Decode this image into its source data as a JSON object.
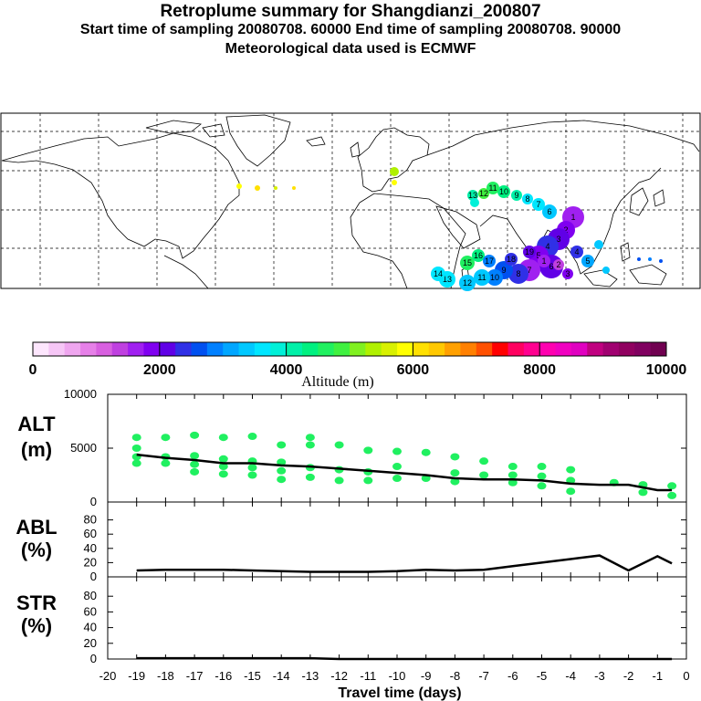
{
  "header": {
    "title": "Retroplume summary for Shangdianzi_200807",
    "subtitle": "Start time of sampling 20080708. 60000     End time of sampling 20080708. 90000",
    "met_line": "Meteorological data used is ECMWF"
  },
  "colorbar": {
    "ticks": [
      "0",
      "2000",
      "4000",
      "6000",
      "8000",
      "10000"
    ],
    "label": "Altitude (m)",
    "colors": [
      "#fde6fd",
      "#f6c6f6",
      "#efa6ef",
      "#e680e8",
      "#d860e0",
      "#bf40e0",
      "#a020f0",
      "#8000f0",
      "#6000e6",
      "#3030e6",
      "#0050f0",
      "#0080ff",
      "#00a6ff",
      "#00c8ff",
      "#00e6ff",
      "#00f0d8",
      "#00f0a8",
      "#00f080",
      "#20f060",
      "#40f040",
      "#80f020",
      "#b0f000",
      "#d8f000",
      "#ffff00",
      "#ffe000",
      "#ffc800",
      "#ffa000",
      "#ff8000",
      "#ff5000",
      "#ff0000",
      "#ff0060",
      "#ff0090",
      "#ff00b0",
      "#f000c0",
      "#e000c0",
      "#c00080",
      "#a00070",
      "#900060",
      "#800060",
      "#700050"
    ]
  },
  "chart_data": {
    "type": "multi-panel",
    "x": [
      -19,
      -18,
      -17,
      -16,
      -15,
      -14,
      -13,
      -12,
      -11,
      -10,
      -9,
      -8,
      -7,
      -6,
      -5,
      -4,
      -3,
      -2,
      -1,
      -0.5
    ],
    "xlim": [
      -20,
      0
    ],
    "xticks": [
      "-20",
      "-19",
      "-18",
      "-17",
      "-16",
      "-15",
      "-14",
      "-13",
      "-12",
      "-11",
      "-10",
      "-9",
      "-8",
      "-7",
      "-6",
      "-5",
      "-4",
      "-3",
      "-2",
      "-1",
      "0"
    ],
    "xlabel": "Travel time (days)",
    "panels": [
      {
        "name": "ALT",
        "ylabel": "ALT",
        "yunit": "(m)",
        "ylim": [
          0,
          10000
        ],
        "yticks": [
          "0",
          "5000",
          "10000"
        ],
        "mean_line": [
          4400,
          4100,
          3900,
          3600,
          3600,
          3400,
          3300,
          3100,
          2900,
          2700,
          2500,
          2200,
          2100,
          2100,
          2000,
          1700,
          1600,
          1600,
          1100,
          1100
        ],
        "point_color": "#20f060",
        "points": [
          [
            -19,
            6000
          ],
          [
            -19,
            5000
          ],
          [
            -19,
            4200
          ],
          [
            -19,
            3600
          ],
          [
            -18,
            6000
          ],
          [
            -18,
            4200
          ],
          [
            -18,
            3600
          ],
          [
            -17,
            6200
          ],
          [
            -17,
            4300
          ],
          [
            -17,
            3500
          ],
          [
            -17,
            2800
          ],
          [
            -16,
            6000
          ],
          [
            -16,
            4000
          ],
          [
            -16,
            3300
          ],
          [
            -16,
            2600
          ],
          [
            -15,
            6100
          ],
          [
            -15,
            3800
          ],
          [
            -15,
            3200
          ],
          [
            -15,
            2500
          ],
          [
            -14,
            5300
          ],
          [
            -14,
            3700
          ],
          [
            -14,
            2900
          ],
          [
            -14,
            2100
          ],
          [
            -13,
            6000
          ],
          [
            -13,
            5300
          ],
          [
            -13,
            3200
          ],
          [
            -13,
            2300
          ],
          [
            -12,
            5300
          ],
          [
            -12,
            3000
          ],
          [
            -12,
            2000
          ],
          [
            -11,
            4800
          ],
          [
            -11,
            2800
          ],
          [
            -11,
            2000
          ],
          [
            -10,
            4700
          ],
          [
            -10,
            3300
          ],
          [
            -10,
            2200
          ],
          [
            -9,
            4600
          ],
          [
            -9,
            2200
          ],
          [
            -8,
            4200
          ],
          [
            -8,
            2700
          ],
          [
            -8,
            1900
          ],
          [
            -7,
            3800
          ],
          [
            -7,
            2500
          ],
          [
            -6,
            3300
          ],
          [
            -6,
            2500
          ],
          [
            -6,
            1800
          ],
          [
            -5,
            3300
          ],
          [
            -5,
            2400
          ],
          [
            -5,
            1500
          ],
          [
            -4,
            3000
          ],
          [
            -4,
            2000
          ],
          [
            -4,
            1000
          ],
          [
            -2.5,
            1800
          ],
          [
            -1.5,
            1600
          ],
          [
            -1.5,
            900
          ],
          [
            -0.5,
            1500
          ],
          [
            -0.5,
            600
          ]
        ]
      },
      {
        "name": "ABL",
        "ylabel": "ABL",
        "yunit": "(%)",
        "ylim": [
          0,
          100
        ],
        "yticks": [
          "0",
          "20",
          "40",
          "60",
          "80"
        ],
        "values": [
          9,
          10,
          10,
          10,
          9,
          8,
          7,
          7,
          7,
          8,
          10,
          9,
          10,
          15,
          20,
          25,
          30,
          9,
          29,
          19
        ]
      },
      {
        "name": "STR",
        "ylabel": "STR",
        "yunit": "(%)",
        "ylim": [
          0,
          100
        ],
        "yticks": [
          "0",
          "20",
          "40",
          "60",
          "80"
        ],
        "values": [
          1,
          1,
          1,
          1,
          1,
          1,
          1,
          0,
          0,
          0,
          0,
          0,
          0,
          0,
          0,
          0,
          0,
          0,
          0,
          0
        ]
      }
    ],
    "map_plume_labels": [
      "1",
      "2",
      "3",
      "4",
      "5",
      "6",
      "7",
      "8",
      "9",
      "10",
      "11",
      "12",
      "13",
      "14",
      "15",
      "16",
      "17",
      "18",
      "19"
    ]
  }
}
